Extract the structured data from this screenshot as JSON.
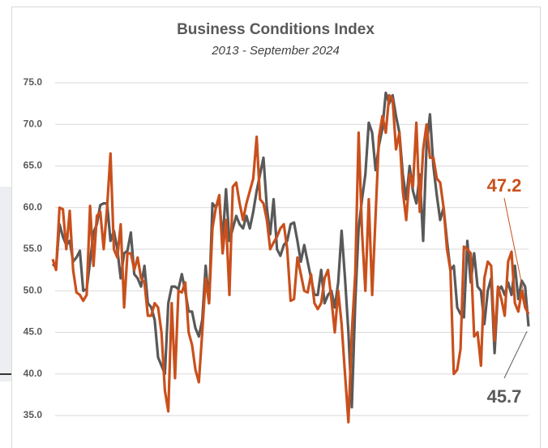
{
  "chart_data": {
    "type": "line",
    "title": "Business Conditions Index",
    "subtitle": "2013 - September 2024",
    "ylim": [
      33,
      76
    ],
    "yticks": [
      {
        "value": 35,
        "label": "35.0"
      },
      {
        "value": 40,
        "label": "40.0"
      },
      {
        "value": 45,
        "label": "45.0"
      },
      {
        "value": 50,
        "label": "50.0"
      },
      {
        "value": 55,
        "label": "55.0"
      },
      {
        "value": 60,
        "label": "60.0"
      },
      {
        "value": 65,
        "label": "65.0"
      },
      {
        "value": 70,
        "label": "70.0"
      },
      {
        "value": 75,
        "label": "75.0"
      }
    ],
    "grid": true,
    "series": [
      {
        "color": "#c9501c",
        "values": [
          53.8,
          52.5,
          60,
          59.8,
          55,
          59.6,
          52.5,
          49.8,
          49.5,
          48.8,
          49.5,
          60.2,
          53,
          59,
          59.5,
          55,
          60,
          66.5,
          55,
          54,
          58,
          48,
          54.5,
          54.5,
          52.5,
          54,
          51.5,
          51,
          47,
          47,
          48.5,
          48,
          45,
          38,
          35.5,
          48.5,
          39.5,
          50,
          49.8,
          51,
          45,
          43.5,
          40.5,
          39,
          45,
          51.5,
          48.5,
          57.5,
          60,
          61.5,
          54.5,
          58.5,
          49.5,
          62.5,
          63,
          60.5,
          58.5,
          60.5,
          62,
          63.5,
          68.5,
          61,
          60.5,
          58.5,
          55,
          55.8,
          56.5,
          57.5,
          58,
          55,
          48.8,
          49,
          54,
          52,
          50,
          49.8,
          52,
          48.5,
          47.8,
          48.5,
          51.5,
          52.5,
          49,
          45,
          50,
          46,
          40,
          34.2,
          45,
          52,
          69,
          57,
          50,
          61,
          49.5,
          59,
          68.5,
          71,
          69,
          73.5,
          73,
          67,
          69,
          62,
          58.5,
          64,
          62.5,
          70.2,
          59.5,
          67,
          70,
          66,
          66,
          63.5,
          63,
          60,
          55,
          52.5,
          40,
          40.5,
          43,
          55.3,
          55,
          54.5,
          44.5,
          45,
          41,
          51.5,
          53.5,
          53,
          44,
          50.5,
          49,
          47,
          53.5,
          54.7,
          48.5,
          47.5,
          50,
          48,
          47.2
        ]
      },
      {
        "color": "#595959",
        "values": [
          53.2,
          52.8,
          58,
          56.5,
          55.5,
          56,
          53.5,
          54,
          54.8,
          50,
          50.2,
          53.5,
          57,
          58,
          60.3,
          60.5,
          60.5,
          56,
          57.2,
          55,
          51.5,
          54.5,
          54.8,
          57,
          52,
          51.5,
          50.5,
          53,
          48.5,
          48,
          46.5,
          42,
          41,
          40,
          48.5,
          50.5,
          50.5,
          50.2,
          52,
          50,
          47.5,
          47.5,
          45.5,
          44.5,
          46.5,
          53,
          48.5,
          60.5,
          60,
          61,
          56,
          62.2,
          56,
          57.5,
          59,
          58,
          57.5,
          59,
          57.5,
          59.5,
          62,
          64,
          66,
          60,
          56.8,
          61,
          55,
          54.2,
          55.5,
          56,
          58,
          58.2,
          56,
          53.5,
          55.5,
          53.5,
          51.5,
          49.5,
          49.5,
          52.5,
          48.5,
          49.5,
          50,
          48,
          51,
          57.2,
          51.5,
          45,
          36,
          48.5,
          57.5,
          61,
          64,
          70.2,
          69,
          64.5,
          67.5,
          69.5,
          73.8,
          72.5,
          73.5,
          71,
          69,
          64,
          61,
          65,
          62,
          60.5,
          64,
          56,
          67.5,
          71.2,
          65,
          61.5,
          58.5,
          60,
          56,
          52.5,
          53,
          48,
          47.2,
          46.8,
          56,
          51,
          54.5,
          50.5,
          50,
          46,
          50,
          51.5,
          42.5,
          50,
          50.5,
          49.5,
          51,
          49.5,
          53,
          49,
          51.2,
          50.5,
          45.7
        ]
      }
    ]
  }
}
